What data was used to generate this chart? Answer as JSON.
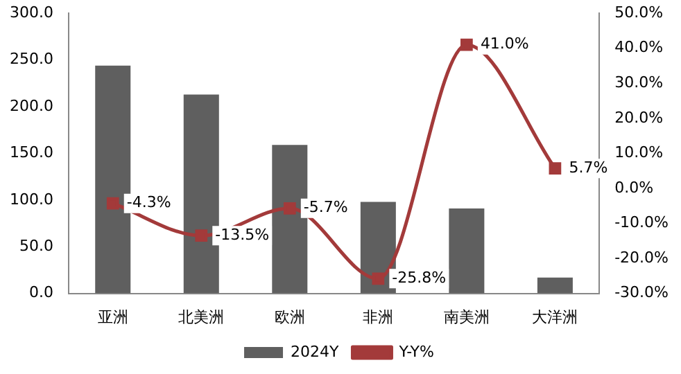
{
  "chart_data": {
    "type": "bar",
    "categories": [
      "亚洲",
      "北美洲",
      "欧洲",
      "非洲",
      "南美洲",
      "大洋洲"
    ],
    "series": [
      {
        "name": "2024Y",
        "color": "#5f5f5f",
        "values": [
          244,
          213,
          159,
          98,
          91,
          17
        ]
      },
      {
        "name": "Y-Y%",
        "type": "line",
        "axis": "y2",
        "color": "#a33a3a",
        "values": [
          -4.3,
          -13.5,
          -5.7,
          -25.8,
          41.0,
          5.7
        ],
        "value_labels": [
          "-4.3%",
          "-13.5%",
          "-5.7%",
          "-25.8%",
          "41.0%",
          "5.7%"
        ]
      }
    ],
    "ylim": [
      0,
      300
    ],
    "yticks": [
      {
        "value": 0,
        "label": "0.0"
      },
      {
        "value": 50,
        "label": "50.0"
      },
      {
        "value": 100,
        "label": "100.0"
      },
      {
        "value": 150,
        "label": "150.0"
      },
      {
        "value": 200,
        "label": "200.0"
      },
      {
        "value": 250,
        "label": "250.0"
      },
      {
        "value": 300,
        "label": "300.0"
      }
    ],
    "y2lim": [
      -30,
      50
    ],
    "y2ticks": [
      {
        "value": -30,
        "label": "-30.0%"
      },
      {
        "value": -20,
        "label": "-20.0%"
      },
      {
        "value": -10,
        "label": "-10.0%"
      },
      {
        "value": 0,
        "label": "0.0%"
      },
      {
        "value": 10,
        "label": "10.0%"
      },
      {
        "value": 20,
        "label": "20.0%"
      },
      {
        "value": 30,
        "label": "30.0%"
      },
      {
        "value": 40,
        "label": "40.0%"
      },
      {
        "value": 50,
        "label": "50.0%"
      }
    ],
    "grid": false,
    "legend": "bottom",
    "marker": "square"
  }
}
